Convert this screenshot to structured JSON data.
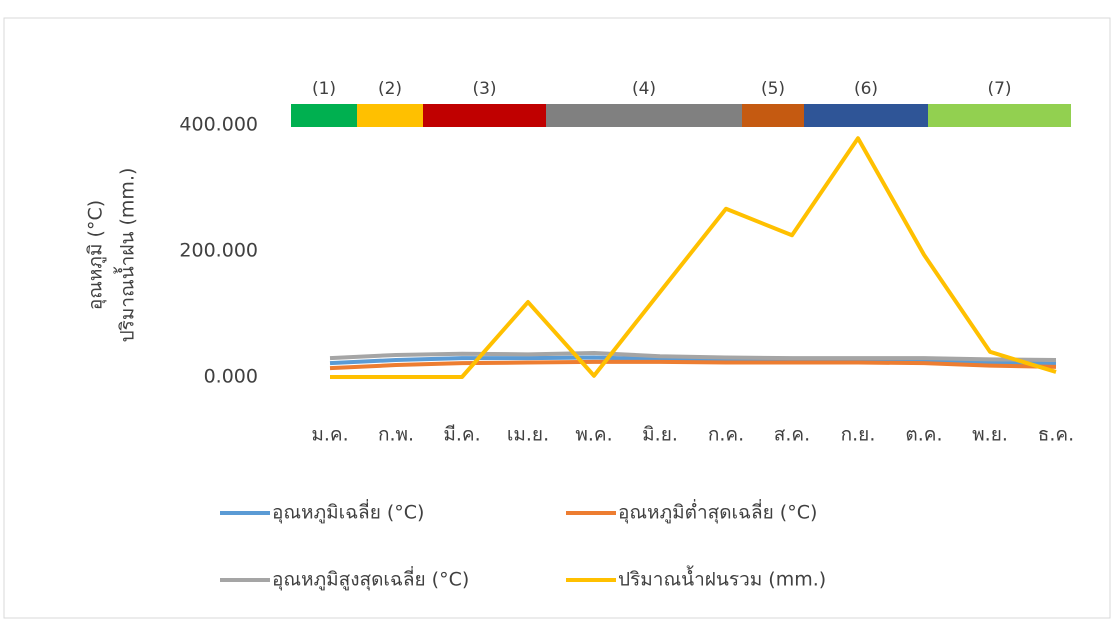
{
  "chart_data": {
    "type": "line",
    "y_axis_label": [
      "อุณหภูมิ (°C)",
      "ปริมาณน้ำฝน (mm.)"
    ],
    "categories": [
      "ม.ค.",
      "ก.พ.",
      "มี.ค.",
      "เม.ย.",
      "พ.ค.",
      "มิ.ย.",
      "ก.ค.",
      "ส.ค.",
      "ก.ย.",
      "ต.ค.",
      "พ.ย.",
      "ธ.ค."
    ],
    "series": [
      {
        "name": "อุณหภูมิเฉลี่ย (°C)",
        "color": "#5b9bd5",
        "values": [
          22,
          27,
          30,
          30,
          31,
          28,
          27,
          27,
          27,
          26,
          23,
          21
        ]
      },
      {
        "name": "อุณหภูมิต่ำสุดเฉลี่ย (°C)",
        "color": "#ed7d31",
        "values": [
          14,
          19,
          22,
          23,
          24,
          24,
          23,
          23,
          23,
          22,
          18,
          16
        ]
      },
      {
        "name": "อุณหภูมิสูงสุดเฉลี่ย (°C)",
        "color": "#a5a5a5",
        "values": [
          30,
          35,
          37,
          36,
          38,
          33,
          31,
          30,
          30,
          30,
          28,
          27
        ]
      },
      {
        "name": "ปริมาณน้ำฝนรวม (mm.)",
        "color": "#ffc000",
        "values": [
          0,
          0,
          0,
          119,
          2,
          135,
          267,
          225,
          379,
          194,
          40,
          8
        ]
      }
    ],
    "periods": [
      {
        "label": "(1)",
        "color": "#00b050"
      },
      {
        "label": "(2)",
        "color": "#ffc000"
      },
      {
        "label": "(3)",
        "color": "#c00000"
      },
      {
        "label": "(4)",
        "color": "#808080"
      },
      {
        "label": "(5)",
        "color": "#c55a11"
      },
      {
        "label": "(6)",
        "color": "#2f5597"
      },
      {
        "label": "(7)",
        "color": "#92d050"
      }
    ],
    "ylim": [
      0,
      400
    ],
    "yticks": [
      {
        "value": 0,
        "label": "0.000"
      },
      {
        "value": 200,
        "label": "200.000"
      },
      {
        "value": 400,
        "label": "400.000"
      }
    ]
  }
}
